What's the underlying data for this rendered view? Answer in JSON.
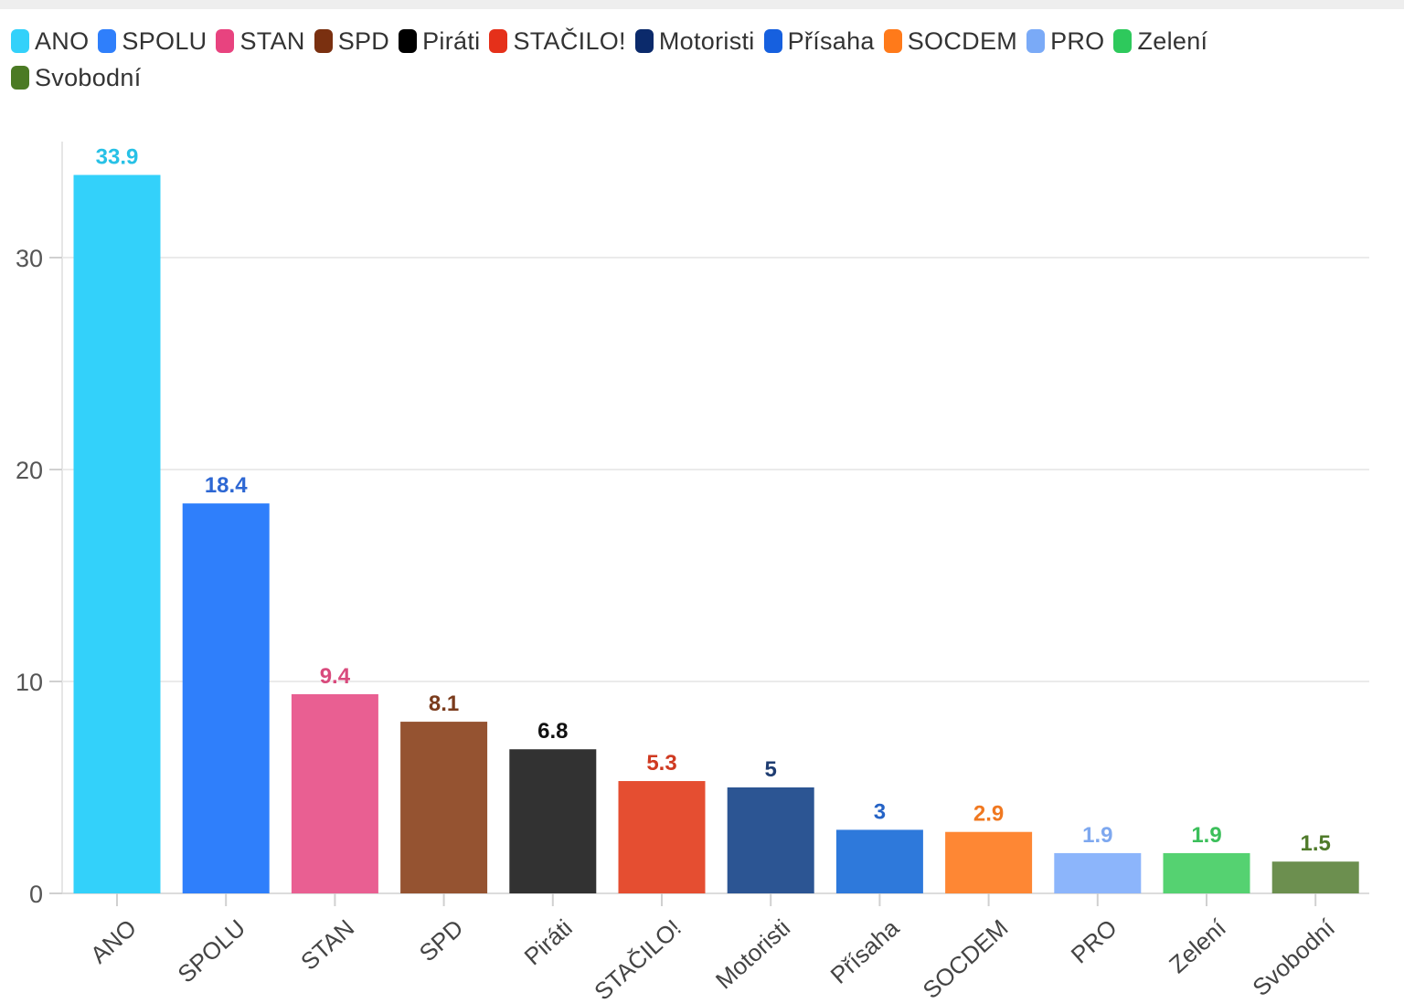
{
  "chart_data": {
    "type": "bar",
    "categories": [
      "ANO",
      "SPOLU",
      "STAN",
      "SPD",
      "Piráti",
      "STAČILO!",
      "Motoristi",
      "Přísaha",
      "SOCDEM",
      "PRO",
      "Zelení",
      "Svobodní"
    ],
    "values": [
      33.9,
      18.4,
      9.4,
      8.1,
      6.8,
      5.3,
      5,
      3,
      2.9,
      1.9,
      1.9,
      1.5
    ],
    "value_labels": [
      "33.9",
      "18.4",
      "9.4",
      "8.1",
      "6.8",
      "5.3",
      "5",
      "3",
      "2.9",
      "1.9",
      "1.9",
      "1.5"
    ],
    "bar_colors": [
      "#33d1fa",
      "#2f7ffb",
      "#e95f92",
      "#955331",
      "#323232",
      "#e54e31",
      "#2c5593",
      "#2e79db",
      "#fe8734",
      "#8cb5fb",
      "#55d271",
      "#6c8f4f"
    ],
    "label_colors": [
      "#27c1e6",
      "#2d67d3",
      "#d94b7d",
      "#7a3b1c",
      "#111111",
      "#cf3a21",
      "#1f3d72",
      "#2563c6",
      "#f07820",
      "#7ea8ef",
      "#3cbf5b",
      "#4f7a2a"
    ],
    "legend": [
      {
        "label": "ANO",
        "color": "#33d1fa"
      },
      {
        "label": "SPOLU",
        "color": "#2f7ffb"
      },
      {
        "label": "STAN",
        "color": "#e8437f"
      },
      {
        "label": "SPD",
        "color": "#7a3010"
      },
      {
        "label": "Piráti",
        "color": "#000000"
      },
      {
        "label": "STAČILO!",
        "color": "#e5301a"
      },
      {
        "label": "Motoristi",
        "color": "#0b2a6b"
      },
      {
        "label": "Přísaha",
        "color": "#1660df"
      },
      {
        "label": "SOCDEM",
        "color": "#ff7a1a"
      },
      {
        "label": "PRO",
        "color": "#7aaaf7"
      },
      {
        "label": "Zelení",
        "color": "#2ec95c"
      },
      {
        "label": "Svobodní",
        "color": "#4b7a24"
      }
    ],
    "yticks": [
      0,
      10,
      20,
      30
    ],
    "ylim": [
      0,
      35.5
    ],
    "grid": true,
    "legend_position": "top-left",
    "title": "",
    "xlabel": "",
    "ylabel": ""
  }
}
